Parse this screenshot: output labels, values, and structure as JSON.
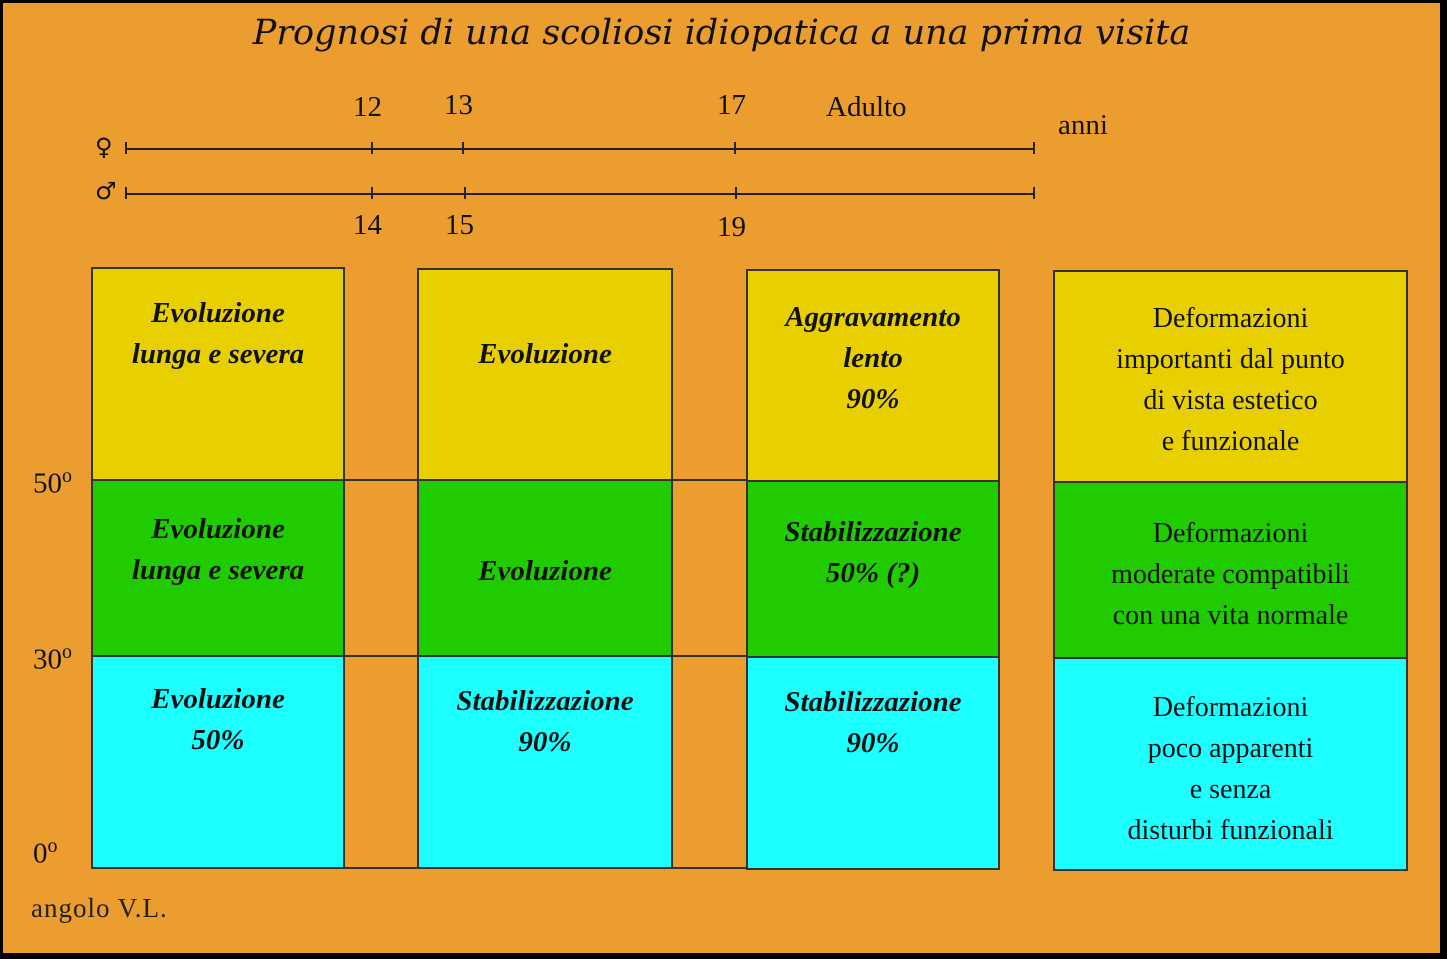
{
  "title": "Prognosi di una scoliosi idiopatica a una prima visita",
  "timeline": {
    "female_symbol": "♀",
    "male_symbol": "♂",
    "female_ages": [
      "12",
      "13",
      "17",
      "Adulto"
    ],
    "male_ages": [
      "14",
      "15",
      "19"
    ],
    "unit": "anni"
  },
  "angles": [
    "50",
    "30",
    "0"
  ],
  "degree_symbol": "o",
  "footer": "angolo V.L.",
  "columns": [
    {
      "rows": [
        [
          "Evoluzione",
          "lunga e severa"
        ],
        [
          "Evoluzione",
          "lunga e severa"
        ],
        [
          "Evoluzione",
          "50%"
        ]
      ]
    },
    {
      "rows": [
        [
          "Evoluzione"
        ],
        [
          "Evoluzione"
        ],
        [
          "Stabilizzazione",
          "90%"
        ]
      ]
    },
    {
      "rows": [
        [
          "Aggravamento",
          "lento",
          "90%"
        ],
        [
          "Stabilizzazione",
          "50% (?)"
        ],
        [
          "Stabilizzazione",
          "90%"
        ]
      ]
    }
  ],
  "outcomes": [
    [
      "Deformazioni",
      "importanti dal punto",
      "di vista estetico",
      "e funzionale"
    ],
    [
      "Deformazioni",
      "moderate compatibili",
      "con una vita normale"
    ],
    [
      "Deformazioni",
      "poco apparenti",
      "e senza",
      "disturbi funzionali"
    ]
  ],
  "colors": {
    "background": "#eb9d2f",
    "yellow": "#e8d000",
    "green": "#20cc00",
    "cyan": "#1cffff"
  }
}
